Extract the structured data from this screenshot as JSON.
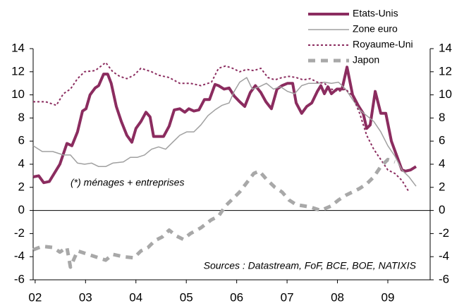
{
  "chart_data": {
    "type": "line",
    "annotations": [
      "(*) ménages + entreprises",
      "Sources : Datastream, FoF, BCE, BOE, NATIXIS"
    ],
    "xlim": [
      2001.96,
      2009.84
    ],
    "xticks": [
      {
        "value": 2002,
        "label": "02"
      },
      {
        "value": 2003,
        "label": "03"
      },
      {
        "value": 2004,
        "label": "04"
      },
      {
        "value": 2005,
        "label": "05"
      },
      {
        "value": 2006,
        "label": "06"
      },
      {
        "value": 2007,
        "label": "07"
      },
      {
        "value": 2008,
        "label": "08"
      },
      {
        "value": 2009,
        "label": "09"
      }
    ],
    "ylim": [
      -6,
      14
    ],
    "yticks": [
      -6,
      -4,
      -2,
      0,
      2,
      4,
      6,
      8,
      10,
      12,
      14
    ],
    "y2lim": [
      -6,
      14
    ],
    "y2ticks": [
      -6,
      -4,
      -2,
      0,
      2,
      4,
      6,
      8,
      10,
      12,
      14
    ],
    "legend": "upper right",
    "series": [
      {
        "name": "Etats-Unis",
        "color": "#8b2c5f",
        "x": [
          2001.96,
          2002.07,
          2002.17,
          2002.28,
          2002.49,
          2002.63,
          2002.73,
          2002.84,
          2002.94,
          2003.01,
          2003.09,
          2003.19,
          2003.26,
          2003.36,
          2003.44,
          2003.51,
          2003.61,
          2003.71,
          2003.82,
          2003.92,
          2004.0,
          2004.1,
          2004.2,
          2004.28,
          2004.35,
          2004.55,
          2004.66,
          2004.76,
          2004.87,
          2004.97,
          2005.05,
          2005.15,
          2005.25,
          2005.36,
          2005.46,
          2005.57,
          2005.64,
          2005.75,
          2005.85,
          2005.95,
          2006.06,
          2006.16,
          2006.27,
          2006.37,
          2006.48,
          2006.58,
          2006.69,
          2006.8,
          2006.9,
          2007.01,
          2007.11,
          2007.18,
          2007.29,
          2007.39,
          2007.49,
          2007.6,
          2007.67,
          2007.74,
          2007.81,
          2007.88,
          2007.99,
          2008.09,
          2008.19,
          2008.3,
          2008.41,
          2008.51,
          2008.58,
          2008.65,
          2008.75,
          2008.86,
          2008.96,
          2009.07,
          2009.18,
          2009.28,
          2009.35,
          2009.45,
          2009.56
        ],
        "values": [
          2.9,
          3.0,
          2.4,
          2.5,
          4.0,
          5.8,
          5.6,
          6.8,
          8.6,
          8.8,
          10.0,
          10.6,
          10.8,
          11.8,
          11.8,
          11.0,
          9.0,
          7.7,
          6.5,
          5.9,
          7.1,
          7.7,
          8.5,
          8.1,
          6.4,
          6.4,
          7.3,
          8.7,
          8.8,
          8.5,
          8.8,
          8.6,
          8.7,
          9.6,
          9.6,
          10.9,
          10.8,
          10.5,
          10.6,
          9.9,
          9.4,
          9.0,
          10.2,
          10.8,
          10.2,
          9.4,
          8.8,
          10.5,
          10.8,
          11.0,
          11.0,
          9.3,
          8.4,
          9.0,
          9.3,
          10.3,
          10.8,
          10.1,
          10.7,
          10.1,
          10.5,
          10.5,
          12.4,
          10.0,
          9.1,
          8.4,
          7.1,
          7.4,
          10.3,
          8.4,
          8.4,
          6.0,
          4.7,
          3.5,
          3.4,
          3.5,
          3.8
        ]
      },
      {
        "name": "Zone euro",
        "color": "#a0a0a0",
        "x": [
          2001.96,
          2002.14,
          2002.35,
          2002.56,
          2002.7,
          2002.84,
          2002.98,
          2003.12,
          2003.26,
          2003.4,
          2003.54,
          2003.75,
          2003.89,
          2004.03,
          2004.17,
          2004.31,
          2004.45,
          2004.59,
          2004.73,
          2004.87,
          2005.01,
          2005.15,
          2005.29,
          2005.43,
          2005.57,
          2005.71,
          2005.85,
          2005.95,
          2006.06,
          2006.2,
          2006.31,
          2006.45,
          2006.59,
          2006.73,
          2006.87,
          2007.01,
          2007.15,
          2007.29,
          2007.43,
          2007.6,
          2007.74,
          2007.88,
          2008.02,
          2008.16,
          2008.3,
          2008.44,
          2008.58,
          2008.72,
          2008.86,
          2009.0,
          2009.14,
          2009.28,
          2009.42,
          2009.56
        ],
        "values": [
          5.6,
          5.1,
          5.1,
          4.8,
          4.8,
          4.1,
          4.0,
          4.1,
          3.8,
          3.8,
          4.1,
          4.2,
          4.6,
          4.6,
          4.8,
          5.3,
          5.5,
          5.3,
          5.9,
          6.5,
          6.8,
          6.8,
          7.4,
          8.2,
          8.7,
          9.1,
          9.3,
          10.3,
          11.1,
          11.5,
          10.5,
          10.7,
          11.0,
          10.5,
          10.7,
          10.3,
          10.1,
          10.8,
          11.0,
          11.0,
          11.1,
          11.0,
          11.1,
          10.5,
          9.6,
          8.7,
          8.2,
          7.7,
          6.8,
          5.6,
          4.7,
          3.5,
          2.9,
          2.1
        ]
      },
      {
        "name": "Royaume-Uni",
        "color": "#8b2c5f",
        "x": [
          2001.96,
          2002.21,
          2002.42,
          2002.56,
          2002.7,
          2002.84,
          2002.98,
          2003.19,
          2003.4,
          2003.54,
          2003.68,
          2003.82,
          2003.96,
          2004.1,
          2004.31,
          2004.45,
          2004.66,
          2004.87,
          2005.08,
          2005.29,
          2005.5,
          2005.64,
          2005.78,
          2005.92,
          2006.06,
          2006.2,
          2006.34,
          2006.48,
          2006.62,
          2006.76,
          2006.9,
          2007.04,
          2007.18,
          2007.32,
          2007.46,
          2007.6,
          2007.74,
          2007.88,
          2008.02,
          2008.16,
          2008.3,
          2008.44,
          2008.58,
          2008.72,
          2008.86,
          2009.0,
          2009.14,
          2009.28,
          2009.42
        ],
        "values": [
          9.4,
          9.4,
          9.1,
          10.1,
          10.5,
          11.4,
          12.0,
          12.1,
          12.8,
          12.0,
          11.6,
          11.4,
          11.7,
          12.3,
          12.0,
          11.7,
          11.5,
          11.0,
          11.0,
          10.8,
          11.1,
          12.3,
          12.5,
          12.3,
          12.0,
          12.2,
          12.1,
          12.3,
          11.5,
          11.3,
          11.5,
          11.6,
          11.5,
          11.3,
          11.4,
          11.1,
          11.0,
          10.5,
          10.3,
          10.5,
          9.9,
          8.4,
          6.5,
          5.3,
          4.4,
          3.5,
          3.2,
          2.6,
          1.6
        ]
      },
      {
        "name": "Japon",
        "color": "#a8a8a8",
        "x": [
          2001.96,
          2002.14,
          2002.35,
          2002.49,
          2002.63,
          2002.7,
          2002.84,
          2003.05,
          2003.26,
          2003.4,
          2003.54,
          2003.75,
          2003.96,
          2004.1,
          2004.24,
          2004.38,
          2004.52,
          2004.66,
          2004.8,
          2004.94,
          2005.08,
          2005.29,
          2005.5,
          2005.64,
          2005.78,
          2005.92,
          2006.06,
          2006.2,
          2006.34,
          2006.45,
          2006.59,
          2006.76,
          2006.9,
          2007.04,
          2007.18,
          2007.32,
          2007.46,
          2007.67,
          2007.88,
          2008.02,
          2008.16,
          2008.3,
          2008.44,
          2008.58,
          2008.72,
          2008.86,
          2009.0,
          2009.14
        ],
        "values": [
          -3.4,
          -3.1,
          -3.2,
          -3.6,
          -3.2,
          -4.9,
          -3.5,
          -3.8,
          -4.1,
          -4.3,
          -3.8,
          -4.0,
          -4.1,
          -3.5,
          -3.2,
          -2.6,
          -2.3,
          -1.7,
          -2.2,
          -2.5,
          -2.0,
          -1.5,
          -0.8,
          -0.5,
          0.4,
          1.0,
          1.6,
          2.4,
          3.2,
          3.4,
          2.7,
          2.0,
          1.6,
          0.9,
          0.5,
          0.4,
          0.3,
          0.0,
          0.4,
          0.9,
          1.3,
          1.6,
          1.9,
          2.3,
          2.9,
          3.8,
          4.4,
          4.2
        ]
      }
    ]
  }
}
